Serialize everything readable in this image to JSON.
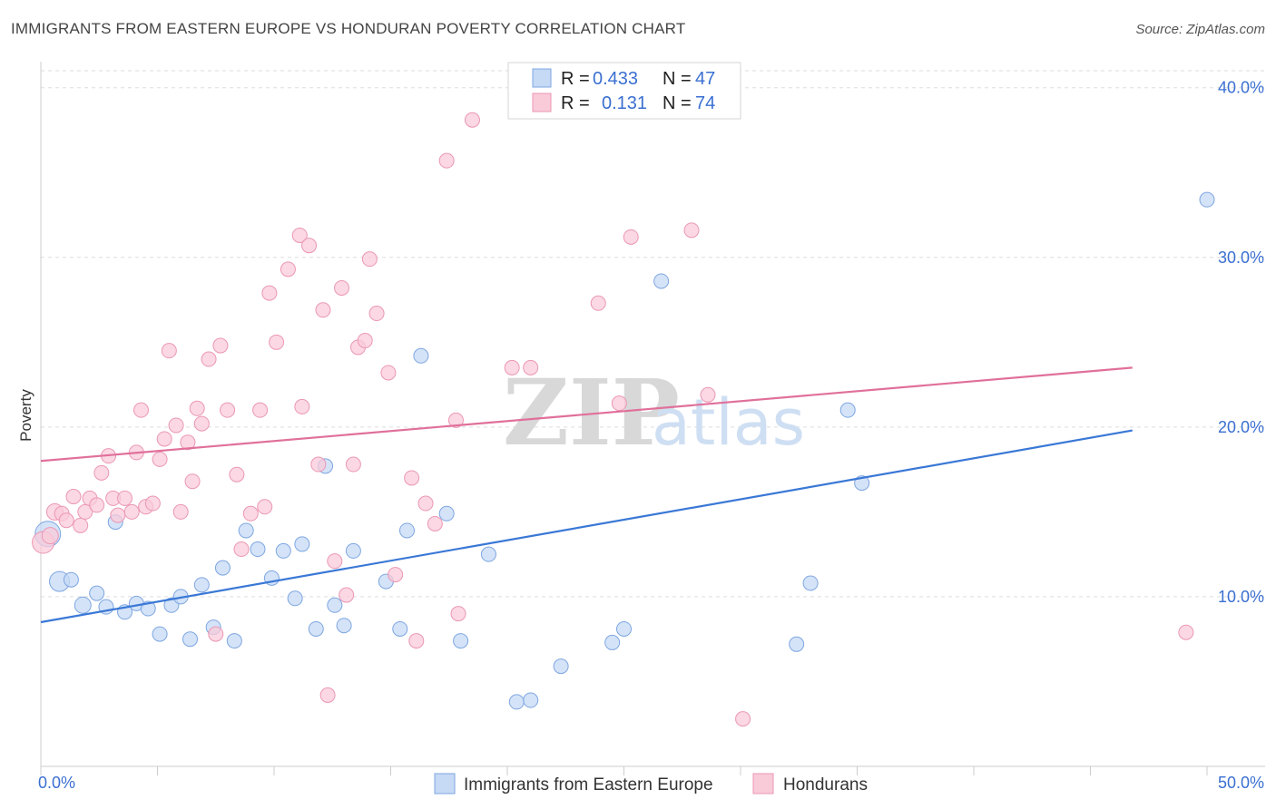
{
  "title": "IMMIGRANTS FROM EASTERN EUROPE VS HONDURAN POVERTY CORRELATION CHART",
  "source": "Source: ZipAtlas.com",
  "watermark": {
    "zip": "ZIP",
    "atlas": "atlas"
  },
  "colors": {
    "blue": "#3a78d6",
    "blue_fill": "#c6d9f5",
    "pink": "#e0709a",
    "pink_fill": "#f9cbd9",
    "accent_text": "#3a6fd1"
  },
  "chart_data": {
    "type": "scatter",
    "title": "IMMIGRANTS FROM EASTERN EUROPE VS HONDURAN POVERTY CORRELATION CHART",
    "xlabel": "",
    "ylabel": "Poverty",
    "xlim": [
      0,
      50
    ],
    "ylim": [
      0,
      41
    ],
    "x_tick_labels": [
      "0.0%",
      "50.0%"
    ],
    "y_ticks": [
      10,
      20,
      30,
      40
    ],
    "y_tick_labels": [
      "10.0%",
      "20.0%",
      "30.0%",
      "40.0%"
    ],
    "grid": true,
    "legend": {
      "placement": "top-center",
      "rows": [
        {
          "r_label": "R =",
          "r_value": "0.433",
          "n_label": "N =",
          "n_value": "47"
        },
        {
          "r_label": "R =",
          "r_value": "0.131",
          "n_label": "N =",
          "n_value": "74"
        }
      ]
    },
    "bottom_legend": [
      "Immigrants from Eastern Europe",
      "Hondurans"
    ],
    "series": [
      {
        "name": "Immigrants from Eastern Europe",
        "color": "#3a78d6",
        "trend": {
          "x": [
            0,
            46.8
          ],
          "y": [
            8.5,
            19.8
          ]
        },
        "points": [
          [
            0.3,
            13.7,
            14
          ],
          [
            0.8,
            10.9,
            11
          ],
          [
            1.3,
            11.0,
            8
          ],
          [
            1.8,
            9.5,
            9
          ],
          [
            2.4,
            10.2,
            8
          ],
          [
            2.8,
            9.4,
            8
          ],
          [
            3.2,
            14.4,
            8
          ],
          [
            3.6,
            9.1,
            8
          ],
          [
            4.1,
            9.6,
            8
          ],
          [
            4.6,
            9.3,
            8
          ],
          [
            5.1,
            7.8,
            8
          ],
          [
            5.6,
            9.5,
            8
          ],
          [
            6.0,
            10.0,
            8
          ],
          [
            6.4,
            7.5,
            8
          ],
          [
            6.9,
            10.7,
            8
          ],
          [
            7.4,
            8.2,
            8
          ],
          [
            7.8,
            11.7,
            8
          ],
          [
            8.3,
            7.4,
            8
          ],
          [
            8.8,
            13.9,
            8
          ],
          [
            9.3,
            12.8,
            8
          ],
          [
            9.9,
            11.1,
            8
          ],
          [
            10.4,
            12.7,
            8
          ],
          [
            10.9,
            9.9,
            8
          ],
          [
            11.2,
            13.1,
            8
          ],
          [
            11.8,
            8.1,
            8
          ],
          [
            12.6,
            9.5,
            8
          ],
          [
            12.2,
            17.7,
            8
          ],
          [
            13.0,
            8.3,
            8
          ],
          [
            13.4,
            12.7,
            8
          ],
          [
            14.8,
            10.9,
            8
          ],
          [
            15.4,
            8.1,
            8
          ],
          [
            15.7,
            13.9,
            8
          ],
          [
            16.3,
            24.2,
            8
          ],
          [
            17.4,
            14.9,
            8
          ],
          [
            18.0,
            7.4,
            8
          ],
          [
            19.2,
            12.5,
            8
          ],
          [
            20.4,
            3.8,
            8
          ],
          [
            21.0,
            3.9,
            8
          ],
          [
            22.3,
            5.9,
            8
          ],
          [
            24.5,
            7.3,
            8
          ],
          [
            25.0,
            8.1,
            8
          ],
          [
            26.6,
            28.6,
            8
          ],
          [
            32.4,
            7.2,
            8
          ],
          [
            33.0,
            10.8,
            8
          ],
          [
            34.6,
            21.0,
            8
          ],
          [
            35.2,
            16.7,
            8
          ],
          [
            50.0,
            33.4,
            8
          ]
        ]
      },
      {
        "name": "Hondurans",
        "color": "#e0709a",
        "trend": {
          "x": [
            0,
            46.8
          ],
          "y": [
            18.0,
            23.5
          ]
        },
        "points": [
          [
            0.1,
            13.2,
            12
          ],
          [
            0.4,
            13.6,
            9
          ],
          [
            0.6,
            15.0,
            9
          ],
          [
            0.9,
            14.9,
            8
          ],
          [
            1.1,
            14.5,
            8
          ],
          [
            1.4,
            15.9,
            8
          ],
          [
            1.7,
            14.2,
            8
          ],
          [
            1.9,
            15.0,
            8
          ],
          [
            2.1,
            15.8,
            8
          ],
          [
            2.4,
            15.4,
            8
          ],
          [
            2.6,
            17.3,
            8
          ],
          [
            2.9,
            18.3,
            8
          ],
          [
            3.1,
            15.8,
            8
          ],
          [
            3.3,
            14.8,
            8
          ],
          [
            3.6,
            15.8,
            8
          ],
          [
            3.9,
            15.0,
            8
          ],
          [
            4.1,
            18.5,
            8
          ],
          [
            4.3,
            21.0,
            8
          ],
          [
            4.5,
            15.3,
            8
          ],
          [
            4.8,
            15.5,
            8
          ],
          [
            5.1,
            18.1,
            8
          ],
          [
            5.3,
            19.3,
            8
          ],
          [
            5.5,
            24.5,
            8
          ],
          [
            5.8,
            20.1,
            8
          ],
          [
            6.0,
            15.0,
            8
          ],
          [
            6.3,
            19.1,
            8
          ],
          [
            6.5,
            16.8,
            8
          ],
          [
            6.7,
            21.1,
            8
          ],
          [
            6.9,
            20.2,
            8
          ],
          [
            7.2,
            24.0,
            8
          ],
          [
            7.5,
            7.8,
            8
          ],
          [
            7.7,
            24.8,
            8
          ],
          [
            8.0,
            21.0,
            8
          ],
          [
            8.4,
            17.2,
            8
          ],
          [
            8.6,
            12.8,
            8
          ],
          [
            9.0,
            14.9,
            8
          ],
          [
            9.4,
            21.0,
            8
          ],
          [
            9.6,
            15.3,
            8
          ],
          [
            9.8,
            27.9,
            8
          ],
          [
            10.1,
            25.0,
            8
          ],
          [
            10.6,
            29.3,
            8
          ],
          [
            11.1,
            31.3,
            8
          ],
          [
            11.5,
            30.7,
            8
          ],
          [
            11.2,
            21.2,
            8
          ],
          [
            11.9,
            17.8,
            8
          ],
          [
            12.1,
            26.9,
            8
          ],
          [
            12.3,
            4.2,
            8
          ],
          [
            12.6,
            12.1,
            8
          ],
          [
            12.9,
            28.2,
            8
          ],
          [
            13.1,
            10.1,
            8
          ],
          [
            13.4,
            17.8,
            8
          ],
          [
            13.6,
            24.7,
            8
          ],
          [
            13.9,
            25.1,
            8
          ],
          [
            14.1,
            29.9,
            8
          ],
          [
            14.4,
            26.7,
            8
          ],
          [
            14.9,
            23.2,
            8
          ],
          [
            15.2,
            11.3,
            8
          ],
          [
            15.9,
            17.0,
            8
          ],
          [
            16.1,
            7.4,
            8
          ],
          [
            16.5,
            15.5,
            8
          ],
          [
            16.9,
            14.3,
            8
          ],
          [
            17.4,
            35.7,
            8
          ],
          [
            17.8,
            20.4,
            8
          ],
          [
            17.9,
            9.0,
            8
          ],
          [
            18.5,
            38.1,
            8
          ],
          [
            20.2,
            23.5,
            8
          ],
          [
            21.0,
            23.5,
            8
          ],
          [
            23.9,
            27.3,
            8
          ],
          [
            24.8,
            21.4,
            8
          ],
          [
            25.3,
            31.2,
            8
          ],
          [
            27.9,
            31.6,
            8
          ],
          [
            28.6,
            21.9,
            8
          ],
          [
            30.1,
            2.8,
            8
          ],
          [
            49.1,
            7.9,
            8
          ]
        ]
      }
    ]
  }
}
